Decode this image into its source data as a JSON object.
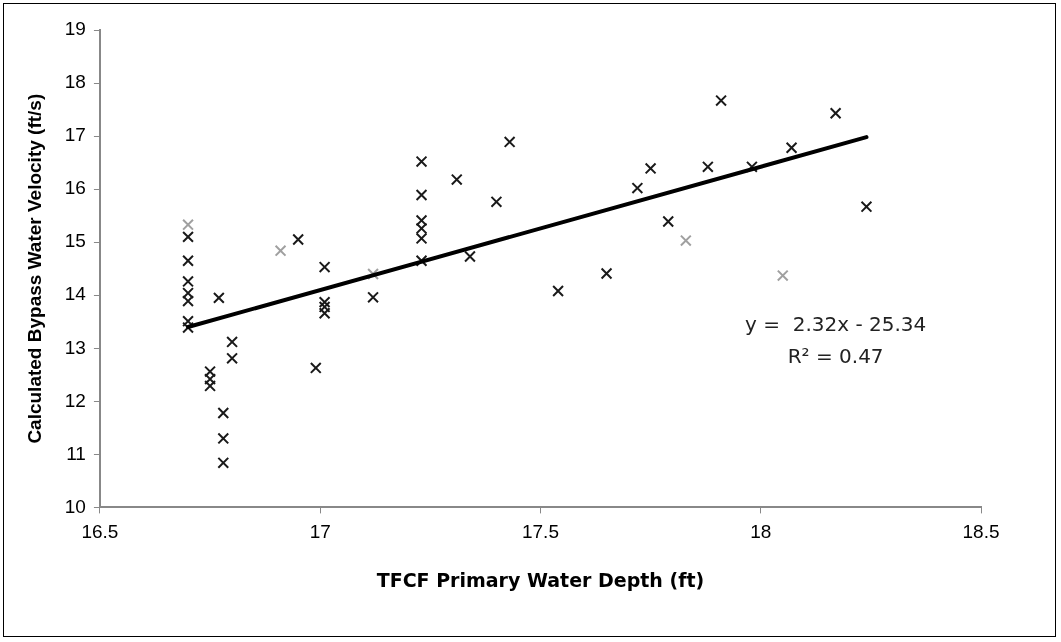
{
  "chart_data": {
    "type": "scatter",
    "xlabel": "TFCF Primary Water Depth (ft)",
    "ylabel": "Calculated Bypass Water Velocity (ft/s)",
    "xlim": [
      16.5,
      18.5
    ],
    "xticks": [
      16.5,
      17,
      17.5,
      18,
      18.5
    ],
    "ylim": [
      10,
      19
    ],
    "yticks": [
      10,
      11,
      12,
      13,
      14,
      15,
      16,
      17,
      18,
      19
    ],
    "grid": false,
    "legend": false,
    "marker": "cross",
    "series": [
      {
        "color": "#1a1a1a",
        "x": [
          16.7,
          16.7,
          16.7,
          16.7,
          16.7,
          16.7,
          16.7,
          16.7,
          16.77,
          16.8,
          16.8,
          16.75,
          16.75,
          16.75,
          16.78,
          16.78,
          16.78,
          16.91,
          16.95,
          17.01,
          17.01,
          17.01,
          17.01,
          16.99,
          17.12,
          17.12,
          17.23,
          17.23,
          17.23,
          17.23,
          17.23,
          17.23,
          17.31,
          17.4,
          17.43,
          17.34,
          17.54,
          17.65,
          17.72,
          17.75,
          17.79,
          17.83,
          17.91,
          17.88,
          17.98,
          18.07,
          18.17,
          18.24,
          18.05
        ],
        "values": [
          15.33,
          15.1,
          14.65,
          14.26,
          14.04,
          13.89,
          13.51,
          13.39,
          13.95,
          13.12,
          12.81,
          12.56,
          12.42,
          12.29,
          11.78,
          11.3,
          10.84,
          14.84,
          15.05,
          14.53,
          13.87,
          13.78,
          13.66,
          12.63,
          13.96,
          14.4,
          16.52,
          15.89,
          15.41,
          15.26,
          15.07,
          14.65,
          16.18,
          15.76,
          16.89,
          14.73,
          14.08,
          14.41,
          16.02,
          16.39,
          15.39,
          15.03,
          17.67,
          16.42,
          16.42,
          16.78,
          17.43,
          15.67,
          14.37
        ],
        "colors": [
          "#a0a0a0",
          "#1a1a1a",
          "#1a1a1a",
          "#1a1a1a",
          "#1a1a1a",
          "#1a1a1a",
          "#1a1a1a",
          "#1a1a1a",
          "#1a1a1a",
          "#1a1a1a",
          "#1a1a1a",
          "#1a1a1a",
          "#1a1a1a",
          "#1a1a1a",
          "#1a1a1a",
          "#1a1a1a",
          "#1a1a1a",
          "#a0a0a0",
          "#1a1a1a",
          "#1a1a1a",
          "#1a1a1a",
          "#1a1a1a",
          "#1a1a1a",
          "#1a1a1a",
          "#1a1a1a",
          "#a0a0a0",
          "#1a1a1a",
          "#1a1a1a",
          "#1a1a1a",
          "#1a1a1a",
          "#1a1a1a",
          "#1a1a1a",
          "#1a1a1a",
          "#1a1a1a",
          "#1a1a1a",
          "#1a1a1a",
          "#1a1a1a",
          "#1a1a1a",
          "#1a1a1a",
          "#1a1a1a",
          "#1a1a1a",
          "#a0a0a0",
          "#1a1a1a",
          "#1a1a1a",
          "#1a1a1a",
          "#1a1a1a",
          "#1a1a1a",
          "#1a1a1a",
          "#a0a0a0"
        ]
      },
      {
        "type": "line",
        "color": "#000000",
        "marker": "none",
        "x": [
          16.7,
          18.24
        ],
        "values": [
          13.4,
          16.98
        ]
      }
    ],
    "annotations": [
      "y =  2.32x - 25.34",
      "R² = 0.47"
    ]
  }
}
